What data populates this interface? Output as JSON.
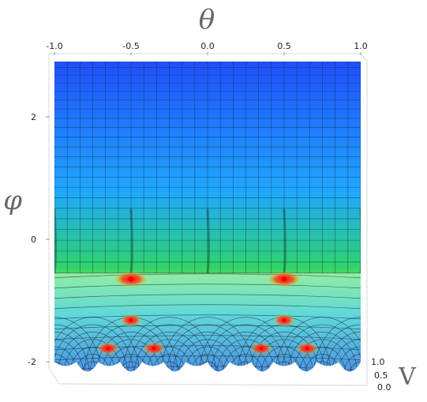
{
  "chart_data": {
    "type": "surface3d",
    "x_axis": {
      "label": "θ",
      "range": [
        -1.0,
        1.0
      ],
      "ticks": [
        "-1.0",
        "-0.5",
        "0.0",
        "0.5",
        "1.0"
      ],
      "tick_values": [
        -1.0,
        -0.5,
        0.0,
        0.5,
        1.0
      ]
    },
    "y_axis": {
      "label": "φ",
      "range": [
        -2.1,
        2.9
      ],
      "ticks": [
        "2",
        "0",
        "-2"
      ],
      "tick_values": [
        2,
        0,
        -2
      ]
    },
    "z_axis": {
      "label": "V",
      "range": [
        0.0,
        1.0
      ],
      "ticks": [
        "1.0",
        "0.5",
        "0.0"
      ],
      "tick_values": [
        1.0,
        0.5,
        0.0
      ]
    },
    "colormap": [
      "#1f4fff",
      "#1fa8ff",
      "#2dd36e",
      "#ffe000",
      "#ff2020"
    ],
    "critical_points": [
      {
        "theta": -0.5,
        "phi": -0.65
      },
      {
        "theta": 0.5,
        "phi": -0.65
      },
      {
        "theta": -0.5,
        "phi": -1.32
      },
      {
        "theta": 0.5,
        "phi": -1.32
      },
      {
        "theta": -0.65,
        "phi": -1.78
      },
      {
        "theta": -0.35,
        "phi": -1.78
      },
      {
        "theta": 0.35,
        "phi": -1.78
      },
      {
        "theta": 0.65,
        "phi": -1.78
      }
    ],
    "grid": true
  }
}
